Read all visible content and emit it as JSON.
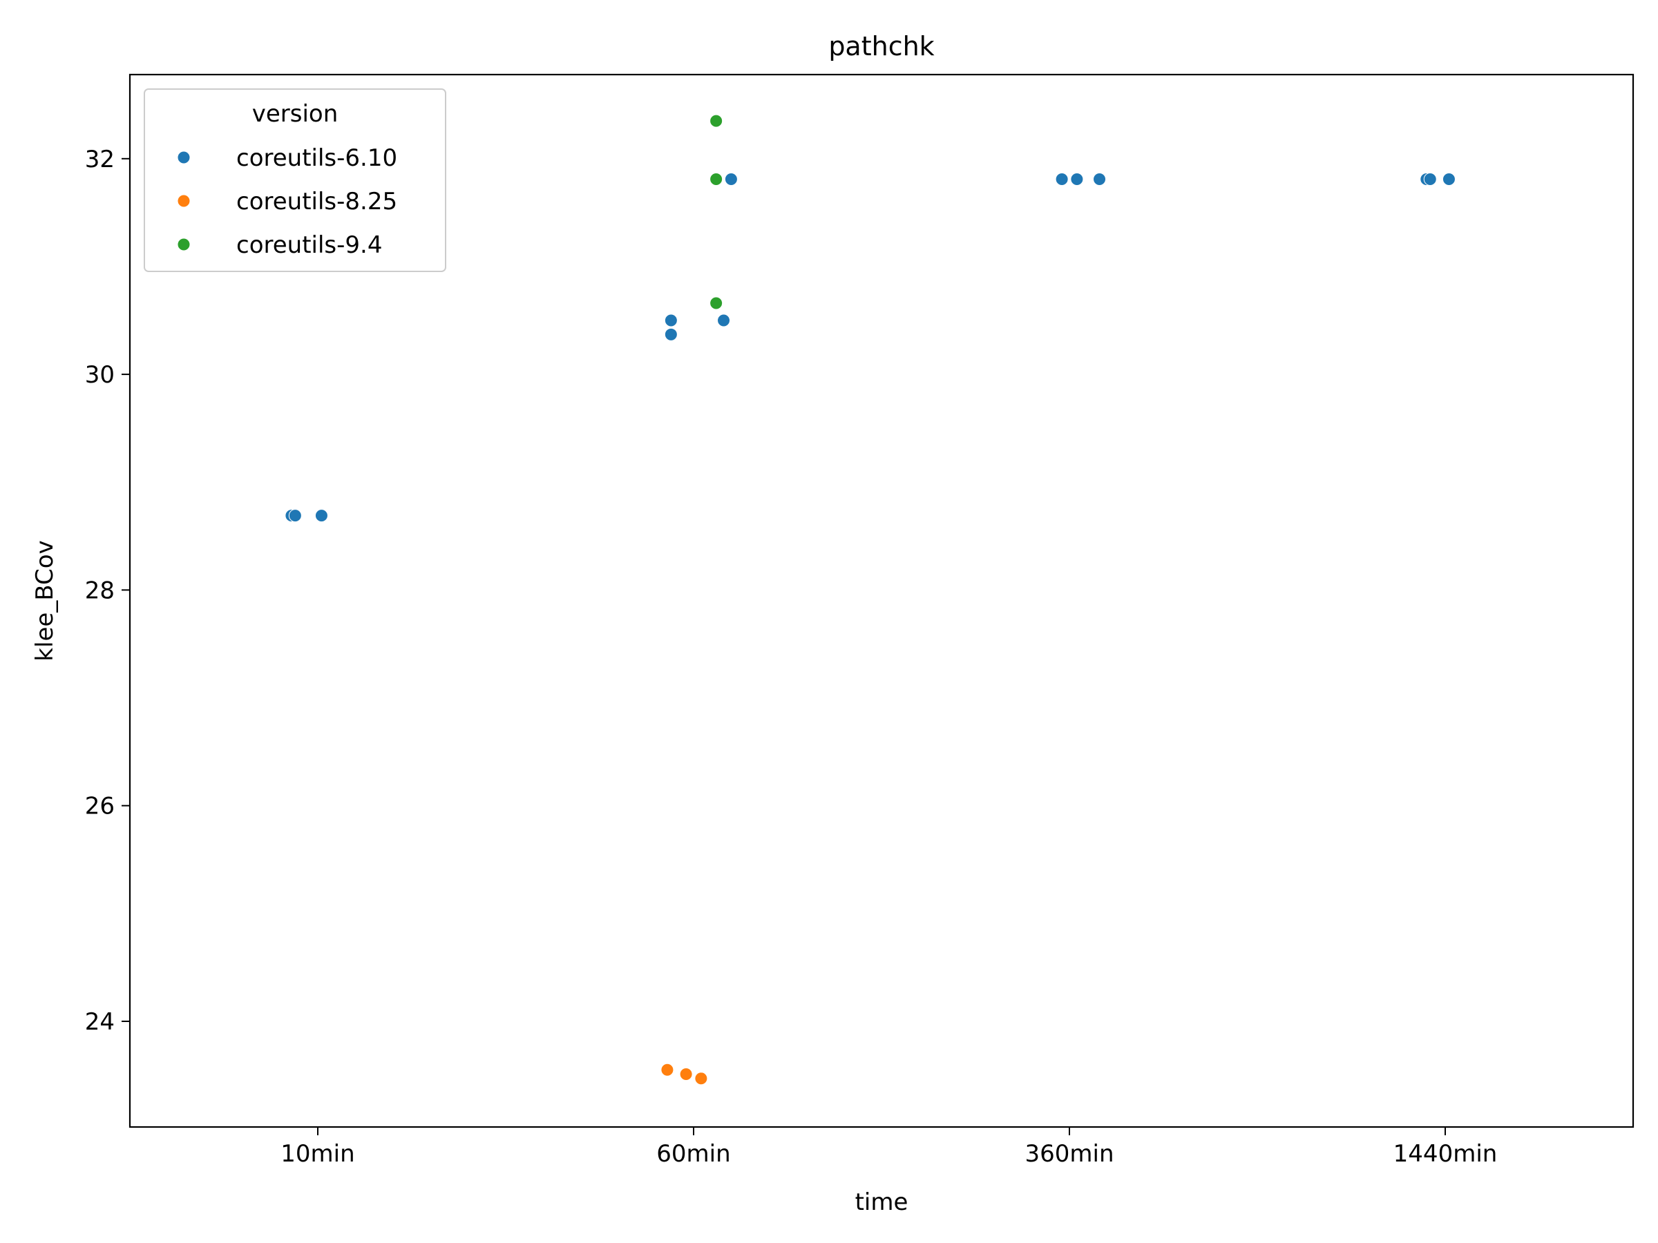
{
  "chart_data": {
    "type": "scatter",
    "title": "pathchk",
    "xlabel": "time",
    "ylabel": "klee_BCov",
    "categories": [
      "10min",
      "60min",
      "360min",
      "1440min"
    ],
    "ylim": [
      23.02,
      32.78
    ],
    "yticks": [
      24,
      26,
      28,
      30,
      32
    ],
    "grid": false,
    "legend": {
      "title": "version",
      "placement": "top-left"
    },
    "series": [
      {
        "name": "coreutils-6.10",
        "color": "#1f77b4",
        "points": [
          {
            "x": "10min",
            "jitter": -0.07,
            "y": 28.69
          },
          {
            "x": "10min",
            "jitter": -0.06,
            "y": 28.69
          },
          {
            "x": "10min",
            "jitter": 0.01,
            "y": 28.69
          },
          {
            "x": "60min",
            "jitter": -0.06,
            "y": 30.5
          },
          {
            "x": "60min",
            "jitter": -0.06,
            "y": 30.37
          },
          {
            "x": "60min",
            "jitter": 0.08,
            "y": 30.5
          },
          {
            "x": "60min",
            "jitter": 0.1,
            "y": 31.81
          },
          {
            "x": "360min",
            "jitter": -0.02,
            "y": 31.81
          },
          {
            "x": "360min",
            "jitter": 0.02,
            "y": 31.81
          },
          {
            "x": "360min",
            "jitter": 0.08,
            "y": 31.81
          },
          {
            "x": "1440min",
            "jitter": -0.05,
            "y": 31.81
          },
          {
            "x": "1440min",
            "jitter": -0.04,
            "y": 31.81
          },
          {
            "x": "1440min",
            "jitter": 0.01,
            "y": 31.81
          }
        ]
      },
      {
        "name": "coreutils-8.25",
        "color": "#ff7f0e",
        "points": [
          {
            "x": "60min",
            "jitter": -0.07,
            "y": 23.55
          },
          {
            "x": "60min",
            "jitter": -0.02,
            "y": 23.51
          },
          {
            "x": "60min",
            "jitter": 0.02,
            "y": 23.47
          }
        ]
      },
      {
        "name": "coreutils-9.4",
        "color": "#2ca02c",
        "points": [
          {
            "x": "60min",
            "jitter": 0.06,
            "y": 32.35
          },
          {
            "x": "60min",
            "jitter": 0.06,
            "y": 31.81
          },
          {
            "x": "60min",
            "jitter": 0.06,
            "y": 30.66
          }
        ]
      }
    ]
  }
}
